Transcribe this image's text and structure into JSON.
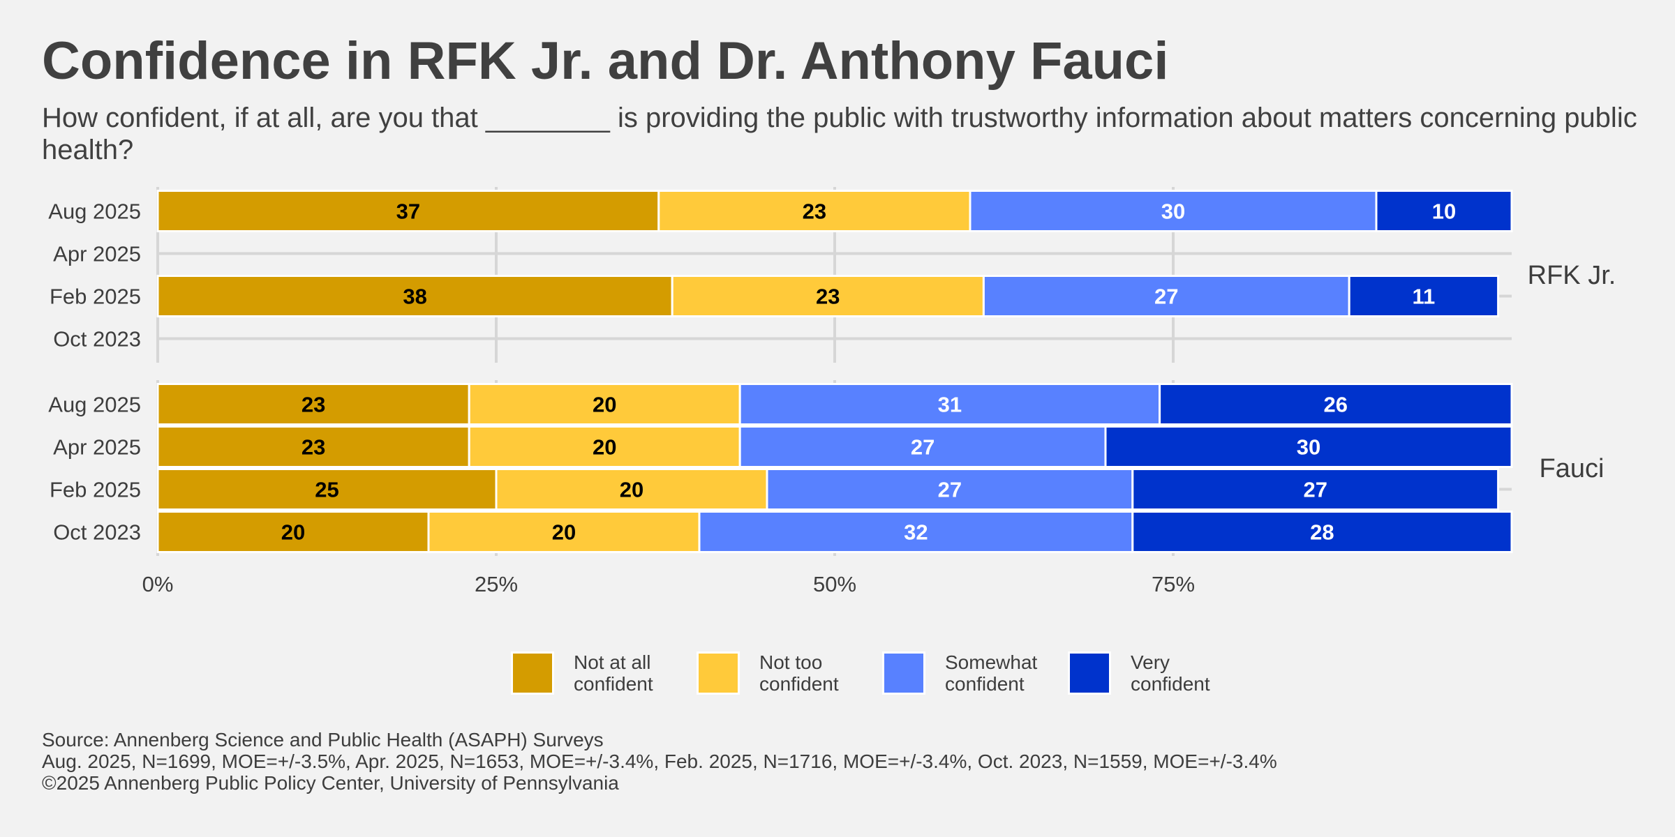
{
  "title": "Confidence in RFK Jr. and Dr. Anthony Fauci",
  "subtitle": "How confident, if at all, are you that ________ is providing the public with trustworthy information about matters concerning public health?",
  "chart_data": {
    "type": "bar",
    "orientation": "horizontal",
    "stacked": true,
    "x_ticks": [
      "0%",
      "25%",
      "50%",
      "75%"
    ],
    "xlim": [
      0,
      100
    ],
    "grid": true,
    "legend_position": "bottom",
    "categories": [
      "Aug 2025",
      "Apr 2025",
      "Feb 2025",
      "Oct 2023"
    ],
    "series": [
      {
        "name": "Not at all\nconfident",
        "color": "#D49C00",
        "label_color": "#000000"
      },
      {
        "name": "Not too\nconfident",
        "color": "#FFCA3A",
        "label_color": "#000000"
      },
      {
        "name": "Somewhat\nconfident",
        "color": "#5881FF",
        "label_color": "#ffffff"
      },
      {
        "name": "Very\nconfident",
        "color": "#0033CC",
        "label_color": "#ffffff"
      }
    ],
    "facets": [
      {
        "name": "RFK Jr.",
        "rows": [
          {
            "period": "Aug 2025",
            "values": [
              37,
              23,
              30,
              10
            ]
          },
          {
            "period": "Apr 2025",
            "values": null
          },
          {
            "period": "Feb 2025",
            "values": [
              38,
              23,
              27,
              11
            ]
          },
          {
            "period": "Oct 2023",
            "values": null
          }
        ]
      },
      {
        "name": "Fauci",
        "rows": [
          {
            "period": "Aug 2025",
            "values": [
              23,
              20,
              31,
              26
            ]
          },
          {
            "period": "Apr 2025",
            "values": [
              23,
              20,
              27,
              30
            ]
          },
          {
            "period": "Feb 2025",
            "values": [
              25,
              20,
              27,
              27
            ]
          },
          {
            "period": "Oct 2023",
            "values": [
              20,
              20,
              32,
              28
            ]
          }
        ]
      }
    ]
  },
  "footer": {
    "source": "Source: Annenberg Science and Public Health (ASAPH) Surveys",
    "samples": "Aug. 2025, N=1699, MOE=+/-3.5%, Apr. 2025, N=1653, MOE=+/-3.4%, Feb. 2025, N=1716, MOE=+/-3.4%, Oct. 2023, N=1559, MOE=+/-3.4%",
    "copyright": "©2025 Annenberg Public Policy Center, University of Pennsylvania"
  }
}
